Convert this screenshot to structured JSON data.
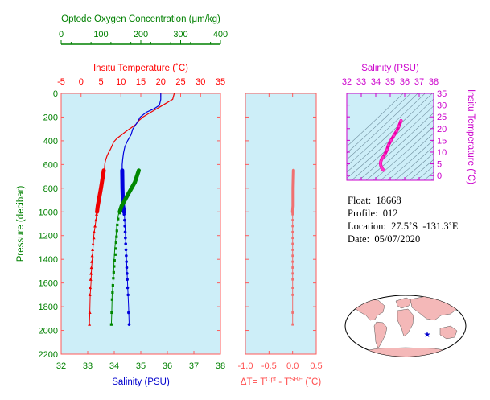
{
  "chart_data": [
    {
      "type": "line",
      "panel": "profile",
      "y_axis": {
        "label": "Pressure (decibar)",
        "range": [
          0,
          2200
        ],
        "ticks": [
          0,
          200,
          400,
          600,
          800,
          1000,
          1200,
          1400,
          1600,
          1800,
          2000,
          2200
        ],
        "inverted": true
      },
      "x_axes": {
        "oxygen": {
          "label": "Optode Oxygen Concentration (μm/kg)",
          "range": [
            0,
            400
          ],
          "ticks": [
            0,
            100,
            200,
            300,
            400
          ],
          "color": "#008000",
          "position": "top"
        },
        "temperature": {
          "label": "Insitu Temperature (˚C)",
          "range": [
            -5,
            35
          ],
          "ticks": [
            -5,
            0,
            5,
            10,
            15,
            20,
            25,
            30,
            35
          ],
          "color": "#ff0000",
          "position": "top"
        },
        "salinity": {
          "label": "Salinity (PSU)",
          "range": [
            32,
            38
          ],
          "ticks": [
            32,
            33,
            34,
            35,
            36,
            37,
            38
          ],
          "color": "#0000cc",
          "position": "bottom"
        }
      },
      "series": [
        {
          "key": "temperature",
          "color": "#ee0000",
          "smooth": [
            [
              23.4,
              0
            ],
            [
              23.2,
              25
            ],
            [
              23.0,
              50
            ],
            [
              21.5,
              80
            ],
            [
              20.0,
              110
            ],
            [
              18.5,
              140
            ],
            [
              17.0,
              170
            ],
            [
              15.5,
              200
            ],
            [
              14.5,
              230
            ],
            [
              13.8,
              260
            ],
            [
              12.6,
              290
            ],
            [
              11.3,
              320
            ],
            [
              10.2,
              350
            ],
            [
              9.0,
              380
            ],
            [
              8.2,
              410
            ],
            [
              7.8,
              440
            ],
            [
              7.4,
              470
            ],
            [
              6.9,
              500
            ],
            [
              6.5,
              530
            ],
            [
              6.2,
              560
            ],
            [
              6.0,
              590
            ],
            [
              5.9,
              620
            ],
            [
              5.9,
              650
            ]
          ],
          "profile": [
            [
              5.7,
              650
            ],
            [
              4.0,
              1000
            ],
            [
              3.6,
              1100
            ],
            [
              3.2,
              1200
            ],
            [
              3.0,
              1300
            ],
            [
              2.8,
              1400
            ],
            [
              2.6,
              1500
            ],
            [
              2.5,
              1600
            ],
            [
              2.3,
              1700
            ],
            [
              2.2,
              1850
            ],
            [
              2.1,
              1950
            ]
          ],
          "markers": [
            [
              3.9,
              1020
            ],
            [
              3.7,
              1070
            ],
            [
              3.5,
              1120
            ],
            [
              3.3,
              1170
            ],
            [
              3.2,
              1220
            ],
            [
              3.0,
              1270
            ],
            [
              2.9,
              1320
            ],
            [
              2.8,
              1370
            ],
            [
              2.7,
              1420
            ],
            [
              2.6,
              1470
            ],
            [
              2.5,
              1520
            ],
            [
              2.4,
              1570
            ],
            [
              2.3,
              1640
            ],
            [
              2.2,
              1700
            ],
            [
              2.2,
              1850
            ],
            [
              2.1,
              1950
            ]
          ],
          "thick": [
            [
              5.7,
              650
            ],
            [
              5.0,
              800
            ],
            [
              4.2,
              950
            ],
            [
              4.0,
              1000
            ]
          ]
        },
        {
          "key": "salinity",
          "color": "#0000dd",
          "smooth": [
            [
              35.75,
              0
            ],
            [
              35.75,
              50
            ],
            [
              35.7,
              100
            ],
            [
              35.5,
              130
            ],
            [
              35.2,
              160
            ],
            [
              34.98,
              200
            ],
            [
              34.85,
              250
            ],
            [
              34.7,
              300
            ],
            [
              34.63,
              350
            ],
            [
              34.5,
              400
            ],
            [
              34.4,
              450
            ],
            [
              34.35,
              500
            ],
            [
              34.32,
              550
            ],
            [
              34.3,
              600
            ],
            [
              34.3,
              650
            ]
          ],
          "profile": [
            [
              34.3,
              650
            ],
            [
              34.32,
              800
            ],
            [
              34.35,
              950
            ],
            [
              34.38,
              1000
            ],
            [
              34.42,
              1200
            ],
            [
              34.46,
              1400
            ],
            [
              34.5,
              1600
            ],
            [
              34.54,
              1800
            ],
            [
              34.56,
              1950
            ]
          ],
          "markers": [
            [
              34.37,
              1020
            ],
            [
              34.39,
              1070
            ],
            [
              34.4,
              1120
            ],
            [
              34.41,
              1170
            ],
            [
              34.42,
              1220
            ],
            [
              34.43,
              1270
            ],
            [
              34.44,
              1320
            ],
            [
              34.45,
              1370
            ],
            [
              34.46,
              1420
            ],
            [
              34.47,
              1470
            ],
            [
              34.48,
              1520
            ],
            [
              34.49,
              1570
            ],
            [
              34.5,
              1640
            ],
            [
              34.52,
              1700
            ],
            [
              34.54,
              1850
            ],
            [
              34.56,
              1950
            ]
          ],
          "thick": [
            [
              34.3,
              650
            ],
            [
              34.31,
              800
            ],
            [
              34.33,
              950
            ],
            [
              34.37,
              1000
            ]
          ]
        },
        {
          "key": "oxygen",
          "color": "#008800",
          "profile": [
            [
              195,
              650
            ],
            [
              185,
              750
            ],
            [
              165,
              850
            ],
            [
              150,
              950
            ],
            [
              145,
              1000
            ],
            [
              140,
              1100
            ],
            [
              138,
              1200
            ],
            [
              135,
              1300
            ],
            [
              133,
              1400
            ],
            [
              132,
              1500
            ],
            [
              130,
              1600
            ],
            [
              128,
              1700
            ],
            [
              127,
              1850
            ],
            [
              126,
              1950
            ]
          ],
          "markers": [
            [
              147,
              1010
            ],
            [
              143,
              1060
            ],
            [
              141,
              1110
            ],
            [
              140,
              1160
            ],
            [
              139,
              1210
            ],
            [
              138,
              1260
            ],
            [
              137,
              1310
            ],
            [
              136,
              1360
            ],
            [
              134,
              1410
            ],
            [
              133,
              1460
            ],
            [
              132,
              1510
            ],
            [
              131,
              1560
            ],
            [
              130,
              1620
            ],
            [
              129,
              1680
            ],
            [
              128,
              1740
            ],
            [
              127,
              1850
            ],
            [
              126,
              1950
            ]
          ],
          "thick": [
            [
              195,
              650
            ],
            [
              185,
              750
            ],
            [
              168,
              850
            ],
            [
              152,
              950
            ],
            [
              147,
              1000
            ]
          ]
        }
      ]
    },
    {
      "type": "line",
      "panel": "delta-temperature",
      "x_axis": {
        "label": "ΔT= T",
        "label_sup1": "Opt",
        "label_mid": " - T",
        "label_sup2": "SBE",
        "label_tail": " (˚C)",
        "range": [
          -1.0,
          0.5
        ],
        "ticks": [
          "-1.0",
          "-0.5",
          "0.0",
          "0.5"
        ],
        "color": "#ff5050"
      },
      "y_axis": {
        "range": [
          0,
          2200
        ],
        "inverted": true
      },
      "series": [
        {
          "name": "",
          "color": "#f07070",
          "thick": [
            [
              0.02,
              650
            ],
            [
              0.01,
              800
            ],
            [
              0.01,
              950
            ],
            [
              0.0,
              1000
            ]
          ],
          "profile": [
            [
              0.0,
              1000
            ],
            [
              0.0,
              1950
            ]
          ],
          "markers": [
            [
              0.0,
              1020
            ],
            [
              0.0,
              1070
            ],
            [
              0.0,
              1120
            ],
            [
              0.0,
              1170
            ],
            [
              0.0,
              1220
            ],
            [
              0.0,
              1270
            ],
            [
              0.0,
              1320
            ],
            [
              0.0,
              1370
            ],
            [
              0.0,
              1420
            ],
            [
              0.0,
              1470
            ],
            [
              0.0,
              1520
            ],
            [
              0.0,
              1570
            ],
            [
              0.0,
              1640
            ],
            [
              0.0,
              1700
            ],
            [
              0.0,
              1850
            ],
            [
              0.0,
              1950
            ]
          ]
        }
      ]
    },
    {
      "type": "scatter",
      "panel": "ts-diagram",
      "x_axis": {
        "label": "Salinity (PSU)",
        "range": [
          32,
          38
        ],
        "ticks": [
          32,
          33,
          34,
          35,
          36,
          37,
          38
        ],
        "color": "#cc00cc",
        "position": "top"
      },
      "y_axis": {
        "label": "Insitu Temperature (˚C)",
        "range": [
          -2,
          35
        ],
        "ticks": [
          0,
          5,
          10,
          15,
          20,
          25,
          30,
          35
        ],
        "color": "#cc00cc",
        "position": "right"
      },
      "series": [
        {
          "name": "",
          "color": "#ee00aa",
          "points": [
            [
              35.75,
              23.4
            ],
            [
              35.6,
              21.0
            ],
            [
              35.45,
              19.0
            ],
            [
              35.25,
              17.0
            ],
            [
              35.05,
              15.0
            ],
            [
              34.88,
              13.0
            ],
            [
              34.78,
              11.0
            ],
            [
              34.62,
              9.0
            ],
            [
              34.5,
              7.8
            ],
            [
              34.4,
              6.9
            ],
            [
              34.35,
              6.0
            ],
            [
              34.32,
              5.4
            ],
            [
              34.34,
              4.6
            ],
            [
              34.38,
              3.8
            ],
            [
              34.42,
              3.2
            ],
            [
              34.48,
              2.7
            ],
            [
              34.54,
              2.3
            ]
          ]
        }
      ]
    }
  ],
  "info": {
    "float": "Float:  18668",
    "profile": "Profile:  012",
    "location": "Location:  27.5˚S  -131.3˚E",
    "date": "Date:  05/07/2020"
  },
  "map": {
    "marker_lat": -27.5,
    "marker_lon": -131.3,
    "marker_color": "#0000cc",
    "land_color": "#f4b8b8",
    "ocean_color": "#ffffff"
  },
  "colors": {
    "plot_bg": "#cdeef8",
    "axis": "#ff5a5a"
  }
}
